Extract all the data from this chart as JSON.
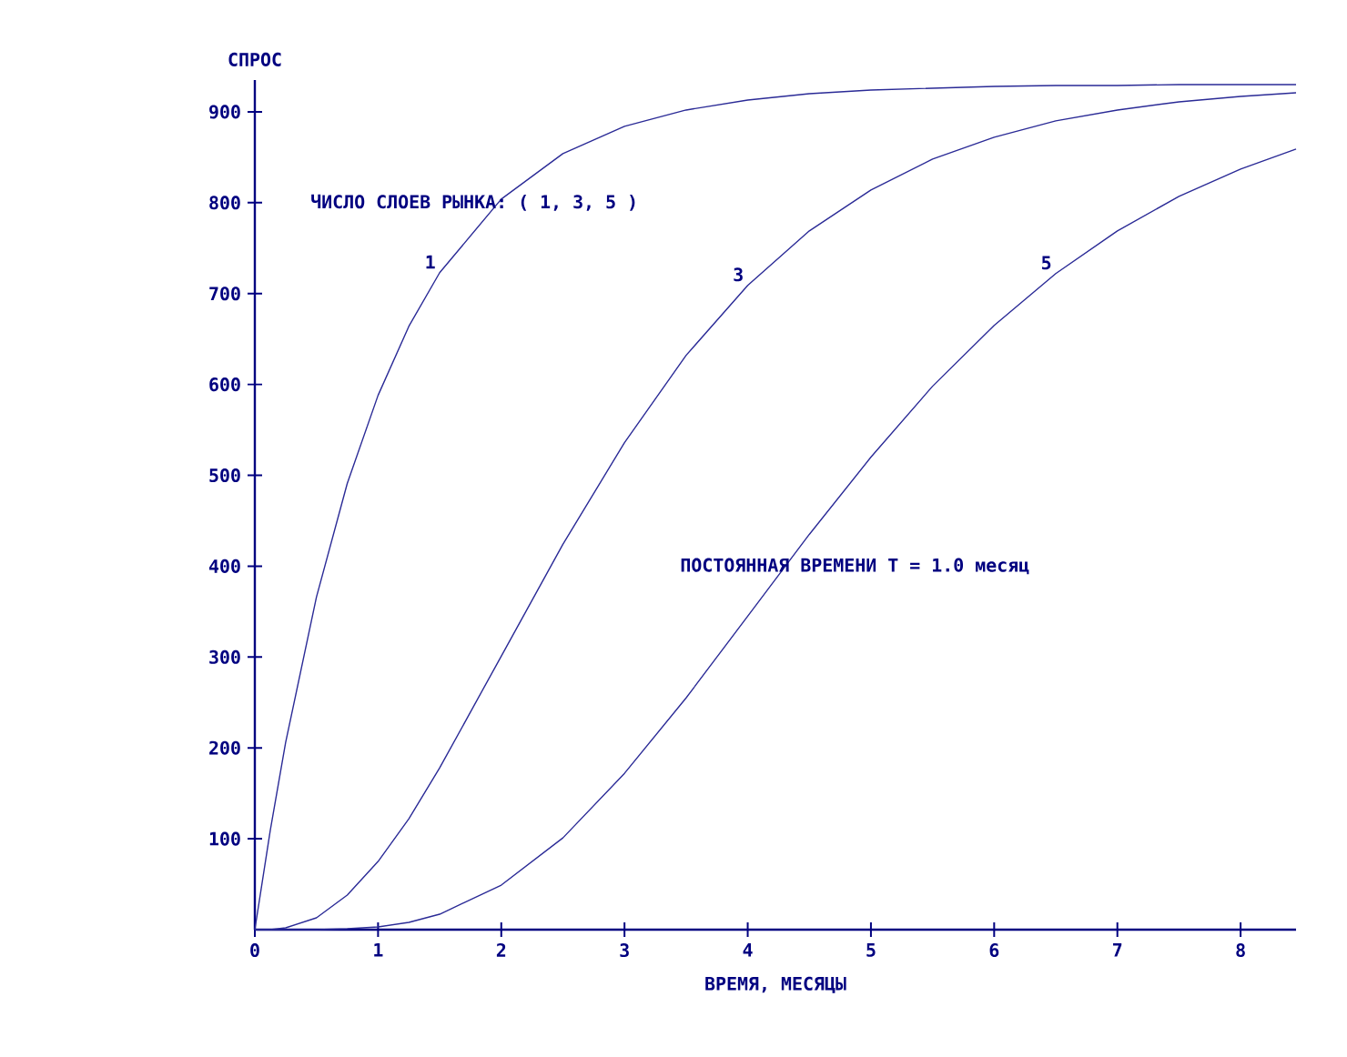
{
  "chart_data": {
    "type": "line",
    "xlabel": "ВРЕМЯ, МЕСЯЦЫ",
    "ylabel": "СПРОС",
    "annotations": [
      "ЧИСЛО СЛОЕВ РЫНКА:  ( 1, 3, 5 )",
      "ПОСТОЯННАЯ ВРЕМЕНИ  T = 1.0 месяц"
    ],
    "x": [
      0,
      0.125,
      0.25,
      0.5,
      0.75,
      1,
      1.25,
      1.5,
      2,
      2.5,
      3,
      3.5,
      4,
      4.5,
      5,
      5.5,
      6,
      6.5,
      7,
      7.5,
      8,
      8.45
    ],
    "series": [
      {
        "name": "1",
        "color": "#2a2a96",
        "values": [
          0,
          109,
          206,
          366,
          491,
          588,
          664,
          723,
          804,
          854,
          884,
          902,
          913,
          920,
          924,
          926,
          928,
          929,
          929,
          930,
          930,
          930
        ]
      },
      {
        "name": "3",
        "color": "#2a2a96",
        "values": [
          0,
          0,
          2,
          13,
          38,
          75,
          122,
          178,
          301,
          424,
          536,
          632,
          709,
          769,
          814,
          848,
          872,
          890,
          902,
          911,
          917,
          921
        ]
      },
      {
        "name": "5",
        "color": "#2a2a96",
        "values": [
          0,
          0,
          0,
          0,
          1,
          3,
          8,
          17,
          49,
          101,
          172,
          255,
          345,
          435,
          520,
          598,
          665,
          722,
          769,
          807,
          837,
          859
        ]
      }
    ],
    "xlim": [
      0,
      8.45
    ],
    "ylim": [
      0,
      935
    ],
    "xticks": [
      0,
      1,
      2,
      3,
      4,
      5,
      6,
      7,
      8
    ],
    "yticks": [
      100,
      200,
      300,
      400,
      500,
      600,
      700,
      800,
      900
    ],
    "line_style": "solid",
    "marker": "none"
  }
}
